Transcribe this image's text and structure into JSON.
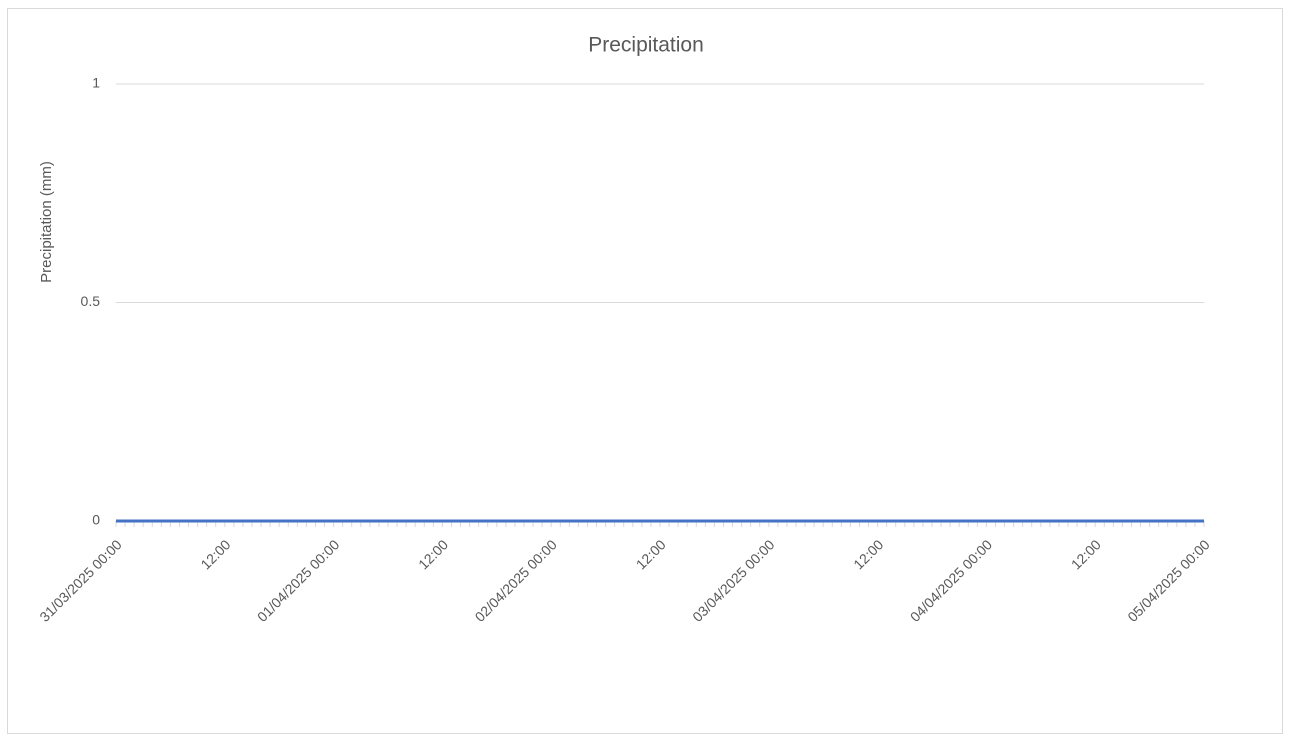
{
  "chart_data": {
    "type": "line",
    "title": "Precipitation",
    "y_label": "Precipitation (mm)",
    "categories": [
      "31/03/2025 00:00",
      null,
      null,
      null,
      null,
      null,
      null,
      null,
      null,
      null,
      null,
      null,
      "12:00",
      null,
      null,
      null,
      null,
      null,
      null,
      null,
      null,
      null,
      null,
      null,
      "01/04/2025 00:00",
      null,
      null,
      null,
      null,
      null,
      null,
      null,
      null,
      null,
      null,
      null,
      "12:00",
      null,
      null,
      null,
      null,
      null,
      null,
      null,
      null,
      null,
      null,
      null,
      "02/04/2025 00:00",
      null,
      null,
      null,
      null,
      null,
      null,
      null,
      null,
      null,
      null,
      null,
      "12:00",
      null,
      null,
      null,
      null,
      null,
      null,
      null,
      null,
      null,
      null,
      null,
      "03/04/2025 00:00",
      null,
      null,
      null,
      null,
      null,
      null,
      null,
      null,
      null,
      null,
      null,
      "12:00",
      null,
      null,
      null,
      null,
      null,
      null,
      null,
      null,
      null,
      null,
      null,
      "04/04/2025 00:00",
      null,
      null,
      null,
      null,
      null,
      null,
      null,
      null,
      null,
      null,
      null,
      "12:00",
      null,
      null,
      null,
      null,
      null,
      null,
      null,
      null,
      null,
      null,
      null,
      "05/04/2025 00:00"
    ],
    "values": [
      0,
      0,
      0,
      0,
      0,
      0,
      0,
      0,
      0,
      0,
      0,
      0,
      0,
      0,
      0,
      0,
      0,
      0,
      0,
      0,
      0,
      0,
      0,
      0,
      0,
      0,
      0,
      0,
      0,
      0,
      0,
      0,
      0,
      0,
      0,
      0,
      0,
      0,
      0,
      0,
      0,
      0,
      0,
      0,
      0,
      0,
      0,
      0,
      0,
      0,
      0,
      0,
      0,
      0,
      0,
      0,
      0,
      0,
      0,
      0,
      0,
      0,
      0,
      0,
      0,
      0,
      0,
      0,
      0,
      0,
      0,
      0,
      0,
      0,
      0,
      0,
      0,
      0,
      0,
      0,
      0,
      0,
      0,
      0,
      0,
      0,
      0,
      0,
      0,
      0,
      0,
      0,
      0,
      0,
      0,
      0,
      0,
      0,
      0,
      0,
      0,
      0,
      0,
      0,
      0,
      0,
      0,
      0,
      0,
      0,
      0,
      0,
      0,
      0,
      0,
      0,
      0,
      0,
      0,
      0,
      0
    ],
    "color": "#4472c4",
    "ylim": [
      0,
      1
    ],
    "yticks": [
      0,
      0.5,
      1
    ],
    "grid": true
  }
}
